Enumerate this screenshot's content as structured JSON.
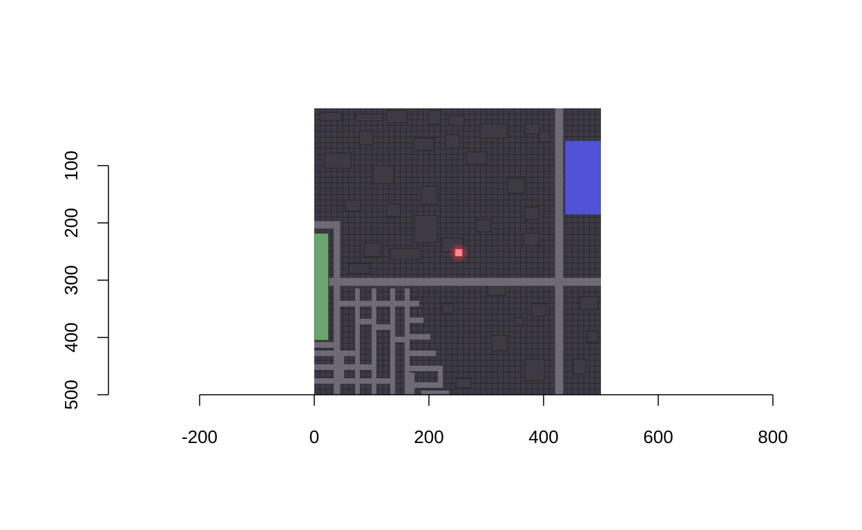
{
  "colors": {
    "background": "#ffffff",
    "map_base": "#3d3a43",
    "grid_line": "#26242b",
    "block": "#3d3a43",
    "road": "#6e6a75",
    "green_zone": "#6aa56e",
    "blue_zone": "#5053d6",
    "marker": "#ff8a96",
    "marker_glow": "#ff2f4a",
    "axis": "#000000"
  },
  "chart_data": {
    "type": "other",
    "x_axis": {
      "range": [
        -200,
        800
      ],
      "ticks": [
        -200,
        0,
        200,
        400,
        600,
        800
      ],
      "tick_labels": [
        "-200",
        "0",
        "200",
        "400",
        "600",
        "800"
      ]
    },
    "y_axis": {
      "range": [
        100,
        500
      ],
      "ticks": [
        100,
        200,
        300,
        400,
        500
      ],
      "tick_labels": [
        "100",
        "200",
        "300",
        "400",
        "500"
      ],
      "direction": "increasing-downward"
    },
    "map_extent": {
      "x": [
        0,
        500
      ],
      "y": [
        0,
        500
      ]
    },
    "green_zone": {
      "x": [
        0,
        25
      ],
      "y": [
        218,
        405
      ]
    },
    "blue_zone": {
      "x": [
        438,
        500
      ],
      "y": [
        57,
        185
      ]
    },
    "marker": {
      "x": 252,
      "y": 252
    },
    "roads": [
      {
        "x": [
          0,
          500
        ],
        "y": [
          296,
          310
        ]
      },
      {
        "x": [
          420,
          434
        ],
        "y": [
          0,
          500
        ]
      },
      {
        "x": [
          0,
          45
        ],
        "y": [
          197,
          210
        ]
      },
      {
        "x": [
          34,
          45
        ],
        "y": [
          197,
          500
        ]
      },
      {
        "x": [
          0,
          34
        ],
        "y": [
          408,
          418
        ]
      }
    ]
  }
}
